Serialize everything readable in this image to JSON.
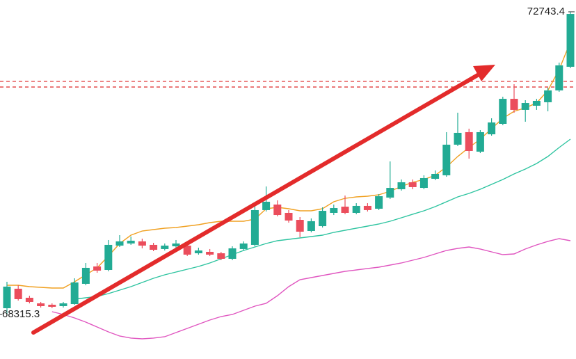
{
  "chart_data": {
    "type": "candlestick",
    "ylim": [
      67663,
      72916
    ],
    "up_color": "#22ab94",
    "down_color": "#eb4d5c",
    "open": [
      68406,
      68691,
      68559,
      68477,
      68457,
      68437,
      68467,
      68763,
      69017,
      68966,
      69322,
      69353,
      69384,
      69333,
      69272,
      69312,
      69322,
      69210,
      69231,
      69210,
      69129,
      69272,
      69333,
      69842,
      69923,
      69801,
      69699,
      69536,
      69607,
      69801,
      69892,
      69801,
      69903,
      69862,
      70025,
      70147,
      70249,
      70167,
      70300,
      70351,
      70799,
      70982,
      70697,
      70951,
      71104,
      71470,
      71308,
      71369,
      71420,
      71593,
      71939
    ],
    "high": [
      68793,
      68742,
      68589,
      68498,
      68477,
      68498,
      68844,
      69068,
      69068,
      69404,
      69475,
      69455,
      69424,
      69363,
      69353,
      69404,
      69353,
      69292,
      69272,
      69231,
      69312,
      69384,
      69913,
      70188,
      69984,
      69842,
      69740,
      69720,
      69882,
      69923,
      70055,
      69943,
      69943,
      70076,
      70554,
      70290,
      70290,
      70351,
      70422,
      70982,
      71267,
      71033,
      71012,
      71185,
      71501,
      71684,
      71450,
      71470,
      71633,
      72000,
      72743.4
    ],
    "low": [
      68315.3,
      68518,
      68477,
      68416,
      68406,
      68416,
      68457,
      68742,
      68925,
      68946,
      69302,
      69333,
      69282,
      69241,
      69251,
      69292,
      69170,
      69190,
      69170,
      69109,
      69109,
      69251,
      69312,
      69821,
      69750,
      69658,
      69445,
      69516,
      69587,
      69770,
      69781,
      69781,
      69821,
      69842,
      70004,
      70127,
      70147,
      70147,
      70279,
      70330,
      70778,
      70595,
      70676,
      70931,
      71084,
      71267,
      71135,
      71308,
      71287,
      71572,
      71918
    ],
    "close": [
      68722,
      68539,
      68498,
      68437,
      68427,
      68477,
      68783,
      68997,
      68956,
      69333,
      69384,
      69394,
      69322,
      69261,
      69322,
      69353,
      69190,
      69251,
      69190,
      69129,
      69282,
      69353,
      69842,
      69964,
      69770,
      69689,
      69526,
      69679,
      69831,
      69872,
      69801,
      69903,
      69842,
      70045,
      70167,
      70249,
      70178,
      70310,
      70371,
      70799,
      70972,
      70707,
      70982,
      71124,
      71470,
      71308,
      71409,
      71440,
      71593,
      71959,
      72712
    ],
    "lines": [
      {
        "color": "#f0a020",
        "values": [
          68742,
          68742,
          68722,
          68712,
          68701,
          68701,
          68793,
          68895,
          68997,
          69170,
          69353,
          69475,
          69536,
          69557,
          69577,
          69587,
          69607,
          69628,
          69658,
          69679,
          69679,
          69679,
          69709,
          69862,
          69882,
          69862,
          69831,
          69831,
          69862,
          69964,
          70015,
          70035,
          70045,
          70066,
          70117,
          70188,
          70249,
          70290,
          70351,
          70473,
          70626,
          70758,
          70880,
          71033,
          71185,
          71287,
          71338,
          71409,
          71593,
          71898,
          72305
        ]
      },
      {
        "color": "#2ec4a0",
        "values": [
          null,
          null,
          null,
          null,
          null,
          null,
          68539,
          68559,
          68579,
          68620,
          68671,
          68722,
          68783,
          68844,
          68895,
          68936,
          68976,
          69017,
          69068,
          69129,
          69190,
          69251,
          69302,
          69353,
          69394,
          69414,
          69434,
          69455,
          69475,
          69516,
          69546,
          69577,
          69607,
          69638,
          69679,
          69730,
          69781,
          69831,
          69892,
          69964,
          70035,
          70086,
          70147,
          70218,
          70290,
          70371,
          70442,
          70524,
          70626,
          70758,
          70880
        ]
      },
      {
        "color": "#e056c0",
        "values": [
          null,
          null,
          null,
          null,
          68355,
          68315,
          68264,
          68203,
          68131,
          68060,
          67999,
          67969,
          67958,
          67969,
          67989,
          68050,
          68111,
          68172,
          68233,
          68284,
          68315,
          68376,
          68437,
          68477,
          68589,
          68722,
          68824,
          68854,
          68885,
          68915,
          68946,
          68966,
          68987,
          69007,
          69037,
          69068,
          69109,
          69149,
          69200,
          69251,
          69282,
          69302,
          69272,
          69231,
          69190,
          69200,
          69272,
          69333,
          69384,
          69424,
          69394
        ]
      }
    ],
    "levels": [
      71725,
      71643
    ],
    "level_color": "#e03a3a",
    "annotations": [
      {
        "label": "72743.4",
        "value": 72743.4,
        "side": "right"
      },
      {
        "label": "68315.3",
        "value": 68315.3,
        "side": "left"
      }
    ]
  }
}
